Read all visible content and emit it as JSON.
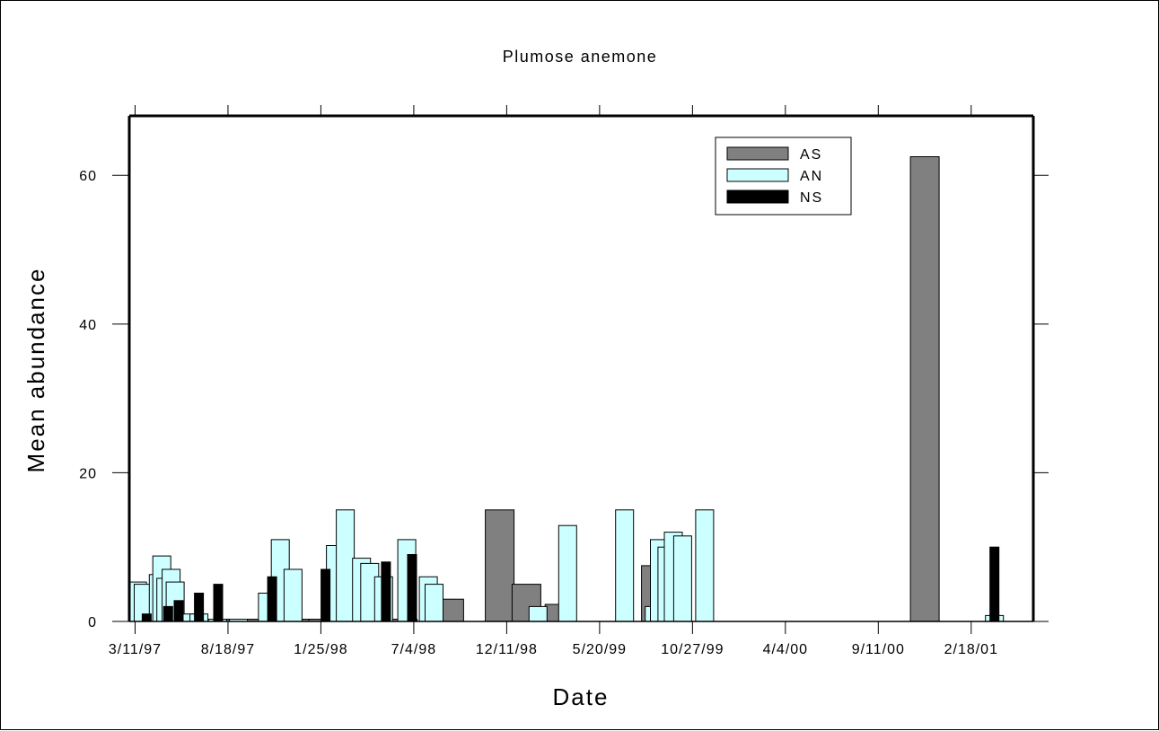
{
  "chart_data": {
    "type": "bar",
    "title": "Plumose anemone",
    "xlabel": "Date",
    "ylabel": "Mean abundance",
    "ylim": [
      0,
      68
    ],
    "xlim": [
      "1997-03-01",
      "2001-06-05"
    ],
    "yticks": [
      0,
      20,
      40,
      60
    ],
    "xticks": [
      {
        "date": "1997-03-11",
        "label": "3/11/97"
      },
      {
        "date": "1997-08-18",
        "label": "8/18/97"
      },
      {
        "date": "1998-01-25",
        "label": "1/25/98"
      },
      {
        "date": "1998-07-04",
        "label": "7/4/98"
      },
      {
        "date": "1998-12-11",
        "label": "12/11/98"
      },
      {
        "date": "1999-05-20",
        "label": "5/20/99"
      },
      {
        "date": "1999-10-27",
        "label": "10/27/99"
      },
      {
        "date": "2000-04-04",
        "label": "4/4/00"
      },
      {
        "date": "2000-09-11",
        "label": "9/11/00"
      },
      {
        "date": "2001-02-18",
        "label": "2/18/01"
      }
    ],
    "legend_position": "top-right",
    "series": [
      {
        "name": "AS",
        "color": "#808080",
        "points": [
          {
            "date": "1997-04-24",
            "value": 0.3
          },
          {
            "date": "1997-05-08",
            "value": 0.3
          },
          {
            "date": "1997-05-22",
            "value": 0.3
          },
          {
            "date": "1997-06-05",
            "value": 0.3
          },
          {
            "date": "1997-06-19",
            "value": 0.3
          },
          {
            "date": "1997-07-03",
            "value": 0.3
          },
          {
            "date": "1997-09-02",
            "value": 0.3
          },
          {
            "date": "1997-09-16",
            "value": 0.3
          },
          {
            "date": "1997-09-30",
            "value": 0.3
          },
          {
            "date": "1997-10-14",
            "value": 0.3
          },
          {
            "date": "1998-01-14",
            "value": 0.3
          },
          {
            "date": "1998-01-29",
            "value": 0.3
          },
          {
            "date": "1998-03-17",
            "value": 0.3
          },
          {
            "date": "1998-04-01",
            "value": 0.3
          },
          {
            "date": "1998-04-16",
            "value": 0.3
          },
          {
            "date": "1998-05-01",
            "value": 0.3
          },
          {
            "date": "1998-05-16",
            "value": 0.3
          },
          {
            "date": "1998-05-31",
            "value": 0.3
          },
          {
            "date": "1998-06-15",
            "value": 0.3
          },
          {
            "date": "1998-09-03",
            "value": 3
          },
          {
            "date": "1998-11-29",
            "value": 15
          },
          {
            "date": "1999-01-14",
            "value": 5
          },
          {
            "date": "1999-03-12",
            "value": 2.3
          },
          {
            "date": "1999-08-25",
            "value": 7.5
          },
          {
            "date": "2000-11-30",
            "value": 62.5
          }
        ]
      },
      {
        "name": "AN",
        "color": "#ccffff",
        "points": [
          {
            "date": "1997-03-15",
            "value": 5.3
          },
          {
            "date": "1997-03-25",
            "value": 5
          },
          {
            "date": "1997-04-20",
            "value": 6.3
          },
          {
            "date": "1997-04-26",
            "value": 8.8
          },
          {
            "date": "1997-05-03",
            "value": 5.8
          },
          {
            "date": "1997-05-12",
            "value": 7
          },
          {
            "date": "1997-05-19",
            "value": 5.3
          },
          {
            "date": "1997-06-05",
            "value": 1
          },
          {
            "date": "1997-06-29",
            "value": 1
          },
          {
            "date": "1997-07-31",
            "value": 0.3
          },
          {
            "date": "1997-09-05",
            "value": 0.3
          },
          {
            "date": "1997-10-25",
            "value": 3.8
          },
          {
            "date": "1997-11-16",
            "value": 11
          },
          {
            "date": "1997-12-08",
            "value": 7
          },
          {
            "date": "1998-02-19",
            "value": 10.2
          },
          {
            "date": "1998-03-08",
            "value": 15
          },
          {
            "date": "1998-04-05",
            "value": 8.5
          },
          {
            "date": "1998-04-19",
            "value": 7.8
          },
          {
            "date": "1998-05-13",
            "value": 6
          },
          {
            "date": "1998-06-22",
            "value": 11
          },
          {
            "date": "1998-07-29",
            "value": 6
          },
          {
            "date": "1998-08-08",
            "value": 5
          },
          {
            "date": "1999-02-03",
            "value": 2
          },
          {
            "date": "1999-03-26",
            "value": 12.9
          },
          {
            "date": "1999-07-02",
            "value": 15
          },
          {
            "date": "1999-08-22",
            "value": 2
          },
          {
            "date": "1999-08-31",
            "value": 11
          },
          {
            "date": "1999-09-13",
            "value": 10
          },
          {
            "date": "1999-09-24",
            "value": 12
          },
          {
            "date": "1999-10-10",
            "value": 11.5
          },
          {
            "date": "1999-11-17",
            "value": 15
          },
          {
            "date": "2001-03-30",
            "value": 0.8
          }
        ]
      },
      {
        "name": "NS",
        "color": "#000000",
        "points": [
          {
            "date": "1997-03-31",
            "value": 1
          },
          {
            "date": "1997-05-07",
            "value": 2
          },
          {
            "date": "1997-05-25",
            "value": 2.8
          },
          {
            "date": "1997-06-29",
            "value": 3.8
          },
          {
            "date": "1997-08-01",
            "value": 5
          },
          {
            "date": "1997-11-02",
            "value": 6
          },
          {
            "date": "1998-02-02",
            "value": 7
          },
          {
            "date": "1998-05-17",
            "value": 8
          },
          {
            "date": "1998-07-01",
            "value": 9
          },
          {
            "date": "2001-03-30",
            "value": 10
          }
        ]
      }
    ]
  }
}
